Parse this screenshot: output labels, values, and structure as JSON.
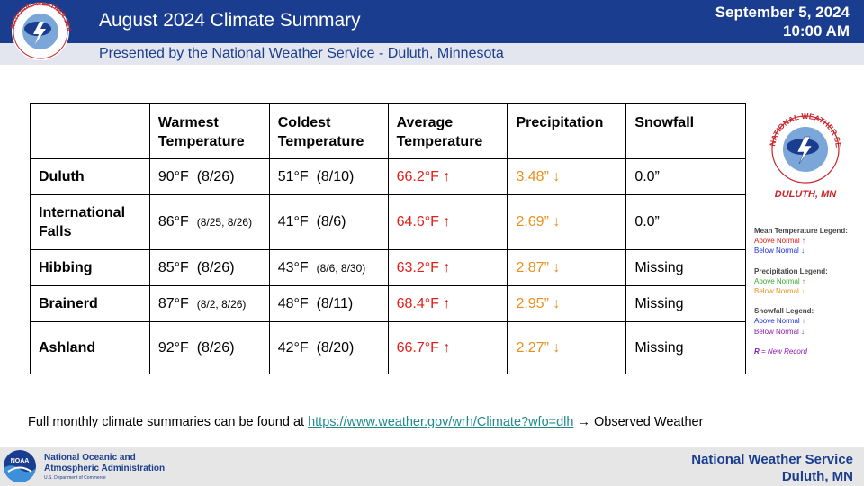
{
  "header": {
    "title": "August 2024 Climate Summary",
    "subtitle": "Presented by the National Weather Service - Duluth, Minnesota",
    "date": "September 5, 2024",
    "time": "10:00 AM",
    "logo_text": "NATIONAL WEATHER SERVICE"
  },
  "table": {
    "headers": [
      "",
      "Warmest Temperature",
      "Coldest Temperature",
      "Average Temperature",
      "Precipitation",
      "Snowfall"
    ],
    "rows": [
      {
        "city": "Duluth",
        "warmest": "90°F",
        "warmest_date": "(8/26)",
        "warmest_date_small": false,
        "coldest": "51°F",
        "coldest_date": "(8/10)",
        "coldest_date_small": false,
        "average": "66.2°F ↑",
        "precip": "3.48” ↓",
        "snow": "0.0”"
      },
      {
        "city": "International Falls",
        "warmest": "86°F",
        "warmest_date": "(8/25, 8/26)",
        "warmest_date_small": true,
        "coldest": "41°F",
        "coldest_date": "(8/6)",
        "coldest_date_small": false,
        "average": "64.6°F ↑",
        "precip": "2.69” ↓",
        "snow": "0.0”"
      },
      {
        "city": "Hibbing",
        "warmest": "85°F",
        "warmest_date": "(8/26)",
        "warmest_date_small": false,
        "coldest": "43°F",
        "coldest_date": "(8/6, 8/30)",
        "coldest_date_small": true,
        "average": "63.2°F ↑",
        "precip": "2.87” ↓",
        "snow": "Missing"
      },
      {
        "city": "Brainerd",
        "warmest": "87°F",
        "warmest_date": "(8/2, 8/26)",
        "warmest_date_small": true,
        "coldest": "48°F",
        "coldest_date": "(8/11)",
        "coldest_date_small": false,
        "average": "68.4°F ↑",
        "precip": "2.95” ↓",
        "snow": "Missing"
      },
      {
        "city": "Ashland",
        "warmest": "92°F",
        "warmest_date": "(8/26)",
        "warmest_date_small": false,
        "coldest": "42°F",
        "coldest_date": "(8/20)",
        "coldest_date_small": false,
        "average": "66.7°F ↑",
        "precip": "2.27” ↓",
        "snow": "Missing"
      }
    ]
  },
  "side_logo": {
    "text": "NATIONAL WEATHER SERVICE",
    "caption": "DULUTH, MN"
  },
  "legend": {
    "mean_temp_title": "Mean Temperature Legend:",
    "mean_temp_above": "Above Normal ↑",
    "mean_temp_below": "Below Normal ↓",
    "precip_title": "Precipitation Legend:",
    "precip_above": "Above Normal ↑",
    "precip_below": "Below Normal ↓",
    "snow_title": "Snowfall Legend:",
    "snow_above": "Above Normal ↑",
    "snow_below": "Below Normal ↓",
    "record_letter": "R",
    "record_text": " = New Record"
  },
  "footnote": {
    "text": "Full monthly  climate summaries can be found at ",
    "link": "https://www.weather.gov/wrh/Climate?wfo=dlh",
    "suffix": "  → Observed Weather"
  },
  "footer": {
    "noaa_badge": "NOAA",
    "noaa_line1": "National Oceanic and",
    "noaa_line2": "Atmospheric Administration",
    "noaa_dept": "U.S. Department of Commerce",
    "right_line1": "National  Weather  Service",
    "right_line2": "Duluth,  MN"
  },
  "colors": {
    "header_band": "#1a3d8f",
    "above_normal_temp": "#e0201a",
    "below_normal_precip": "#e8901c",
    "link": "#1f8a8a"
  }
}
